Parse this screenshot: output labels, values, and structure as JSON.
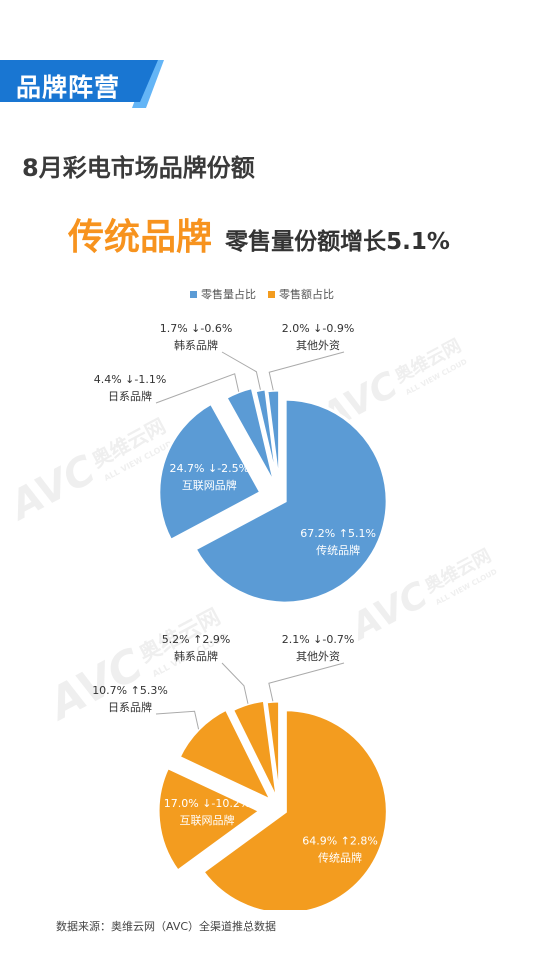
{
  "section_tag": {
    "label": "品牌阵营",
    "color": "#1976d2",
    "accent_color": "#64b5f6"
  },
  "page_title": "8月彩电市场品牌份额",
  "headline": {
    "brand": "传统品牌",
    "description": "零售量份额增长5.1%"
  },
  "legend": [
    {
      "name": "零售量占比",
      "color": "#5b9bd5"
    },
    {
      "name": "零售额占比",
      "color": "#f39c1f"
    }
  ],
  "watermark": {
    "logo": "AVC",
    "brand": "奥维云网",
    "sub": "ALL VIEW CLOUD"
  },
  "chart_data": [
    {
      "type": "pie",
      "title": "零售量占比",
      "color": "#5b9bd5",
      "slices": [
        {
          "name": "传统品牌",
          "value": 67.2,
          "change": "↑5.1%"
        },
        {
          "name": "互联网品牌",
          "value": 24.7,
          "change": "↓-2.5%"
        },
        {
          "name": "日系品牌",
          "value": 4.4,
          "change": "↓-1.1%"
        },
        {
          "name": "韩系品牌",
          "value": 1.7,
          "change": "↓-0.6%"
        },
        {
          "name": "其他外资",
          "value": 2.0,
          "change": "↓-0.9%"
        }
      ]
    },
    {
      "type": "pie",
      "title": "零售额占比",
      "color": "#f39c1f",
      "slices": [
        {
          "name": "传统品牌",
          "value": 64.9,
          "change": "↑2.8%"
        },
        {
          "name": "互联网品牌",
          "value": 17.0,
          "change": "↓-10.2%"
        },
        {
          "name": "日系品牌",
          "value": 10.7,
          "change": "↑5.3%"
        },
        {
          "name": "韩系品牌",
          "value": 5.2,
          "change": "↑2.9%"
        },
        {
          "name": "其他外资",
          "value": 2.1,
          "change": "↓-0.7%"
        }
      ]
    }
  ],
  "source_note": "数据来源：奥维云网（AVC）全渠道推总数据"
}
